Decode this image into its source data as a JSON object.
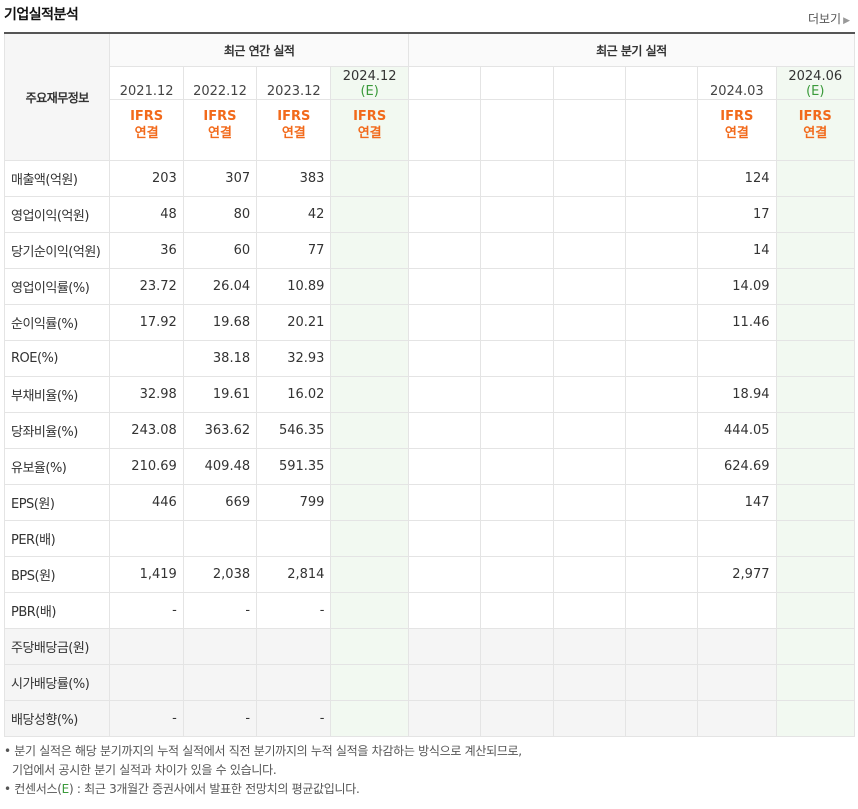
{
  "header": {
    "title": "기업실적분석",
    "more": "더보기"
  },
  "table": {
    "label_header": "주요재무정보",
    "annual_group": "최근 연간 실적",
    "quarter_group": "최근 분기 실적",
    "annual_periods": [
      "2021.12",
      "2022.12",
      "2023.12",
      "2024.12"
    ],
    "annual_est_mark": "(E)",
    "quarter_periods": [
      "",
      "",
      "",
      "",
      "2024.03",
      "2024.06"
    ],
    "quarter_est_mark": "(E)",
    "ifrs_label": "IFRS",
    "consol_label": "연결",
    "rows": [
      {
        "label": "매출액(억원)",
        "annual": [
          "203",
          "307",
          "383",
          ""
        ],
        "quarter": [
          "",
          "",
          "",
          "",
          "124",
          ""
        ]
      },
      {
        "label": "영업이익(억원)",
        "annual": [
          "48",
          "80",
          "42",
          ""
        ],
        "quarter": [
          "",
          "",
          "",
          "",
          "17",
          ""
        ]
      },
      {
        "label": "당기순이익(억원)",
        "annual": [
          "36",
          "60",
          "77",
          ""
        ],
        "quarter": [
          "",
          "",
          "",
          "",
          "14",
          ""
        ]
      },
      {
        "label": "영업이익률(%)",
        "annual": [
          "23.72",
          "26.04",
          "10.89",
          ""
        ],
        "quarter": [
          "",
          "",
          "",
          "",
          "14.09",
          ""
        ]
      },
      {
        "label": "순이익률(%)",
        "annual": [
          "17.92",
          "19.68",
          "20.21",
          ""
        ],
        "quarter": [
          "",
          "",
          "",
          "",
          "11.46",
          ""
        ]
      },
      {
        "label": "ROE(%)",
        "annual": [
          "",
          "38.18",
          "32.93",
          ""
        ],
        "quarter": [
          "",
          "",
          "",
          "",
          "",
          ""
        ]
      },
      {
        "label": "부채비율(%)",
        "annual": [
          "32.98",
          "19.61",
          "16.02",
          ""
        ],
        "quarter": [
          "",
          "",
          "",
          "",
          "18.94",
          ""
        ]
      },
      {
        "label": "당좌비율(%)",
        "annual": [
          "243.08",
          "363.62",
          "546.35",
          ""
        ],
        "quarter": [
          "",
          "",
          "",
          "",
          "444.05",
          ""
        ]
      },
      {
        "label": "유보율(%)",
        "annual": [
          "210.69",
          "409.48",
          "591.35",
          ""
        ],
        "quarter": [
          "",
          "",
          "",
          "",
          "624.69",
          ""
        ]
      },
      {
        "label": "EPS(원)",
        "annual": [
          "446",
          "669",
          "799",
          ""
        ],
        "quarter": [
          "",
          "",
          "",
          "",
          "147",
          ""
        ]
      },
      {
        "label": "PER(배)",
        "annual": [
          "",
          "",
          "",
          ""
        ],
        "quarter": [
          "",
          "",
          "",
          "",
          "",
          ""
        ]
      },
      {
        "label": "BPS(원)",
        "annual": [
          "1,419",
          "2,038",
          "2,814",
          ""
        ],
        "quarter": [
          "",
          "",
          "",
          "",
          "2,977",
          ""
        ]
      },
      {
        "label": "PBR(배)",
        "annual": [
          "-",
          "-",
          "-",
          ""
        ],
        "quarter": [
          "",
          "",
          "",
          "",
          "",
          ""
        ]
      },
      {
        "label": "주당배당금(원)",
        "annual": [
          "",
          "",
          "",
          ""
        ],
        "quarter": [
          "",
          "",
          "",
          "",
          "",
          ""
        ]
      },
      {
        "label": "시가배당률(%)",
        "annual": [
          "",
          "",
          "",
          ""
        ],
        "quarter": [
          "",
          "",
          "",
          "",
          "",
          ""
        ]
      },
      {
        "label": "배당성향(%)",
        "annual": [
          "-",
          "-",
          "-",
          ""
        ],
        "quarter": [
          "",
          "",
          "",
          "",
          "",
          ""
        ]
      }
    ]
  },
  "notes": {
    "line1": "분기 실적은 해당 분기까지의 누적 실적에서 직전 분기까지의 누적 실적을 차감하는 방식으로 계산되므로,",
    "line2": "기업에서 공시한 분기 실적과 차이가 있을 수 있습니다.",
    "line3_prefix": "컨센서스(",
    "line3_mark": "E",
    "line3_suffix": ") : 최근 3개월간 증권사에서 발표한 전망치의 평균값입니다."
  }
}
